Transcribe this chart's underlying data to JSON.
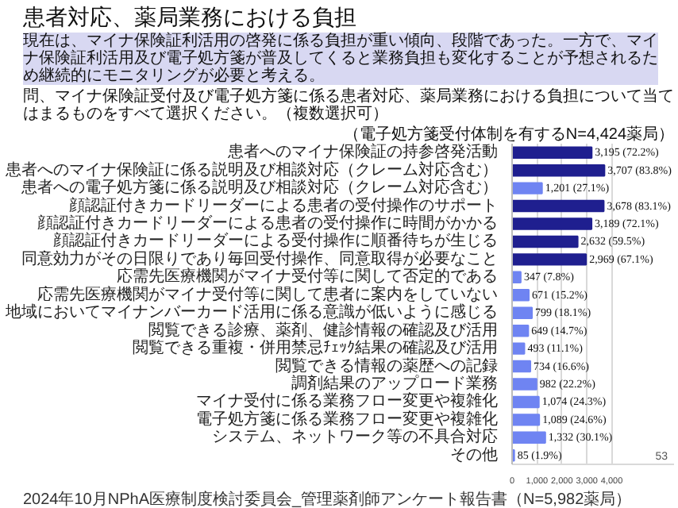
{
  "chart_data": {
    "type": "bar",
    "orientation": "horizontal",
    "title": "患者対応、薬局業務における負担",
    "subtitle": "現在は、マイナ保険証利活用の啓発に係る負担が重い傾向、段階であった。一方で、マイナ保険証利活用及び電子処方箋が普及してくると業務負担も変化することが予想されるため継続的にモニタリングが必要と考える。",
    "annotations": [
      "問、マイナ保険証受付及び電子処方箋に係る患者対応、薬局業務における負担について当てはまるものをすべて選択ください。（複数選択可）",
      "（電子処方箋受付体制を有するN=4,424薬局）",
      "2024年10月NPhA医療制度検討委員会_管理薬剤師アンケート報告書（N=5,982薬局）",
      "53"
    ],
    "categories": [
      "患者へのマイナ保険証の持参啓発活動",
      "患者へのマイナ保険証に係る説明及び相談対応（クレーム対応含む）",
      "患者への電子処方箋に係る説明及び相談対応（クレーム対応含む）",
      "顔認証付きカードリーダーによる患者の受付操作のサポート",
      "顔認証付きカードリーダーによる患者の受付操作に時間がかかる",
      "顔認証付きカードリーダーによる受付操作に順番待ちが生じる",
      "同意効力がその日限りであり毎回受付操作、同意取得が必要なこと",
      "応需先医療機関がマイナ受付等に関して否定的である",
      "応需先医療機関がマイナ受付等に関して患者に案内をしていない",
      "地域においてマイナンバーカード活用に係る意識が低いように感じる",
      "閲覧できる診療、薬剤、健診情報の確認及び活用",
      "閲覧できる重複・併用禁忌ﾁｪｯｸ結果の確認及び活用",
      "閲覧できる情報の薬歴への記録",
      "調剤結果のアップロード業務",
      "マイナ受付に係る業務フロー変更や複雑化",
      "電子処方箋に係る業務フロー変更や複雑化",
      "システム、ネットワーク等の不具合対応",
      "その他"
    ],
    "values": [
      3195,
      3707,
      1201,
      3678,
      3189,
      2632,
      2969,
      347,
      671,
      799,
      649,
      493,
      734,
      982,
      1074,
      1089,
      1332,
      85
    ],
    "value_labels": [
      "3,195 (72.2%)",
      "3,707 (83.8%)",
      "1,201 (27.1%)",
      "3,678 (83.1%)",
      "3,189 (72.1%)",
      "2,632 (59.5%)",
      "2,969 (67.1%)",
      "347 (7.8%)",
      "671 (15.2%)",
      "799 (18.1%)",
      "649 (14.7%)",
      "493 (11.1%)",
      "734 (16.6%)",
      "982 (22.2%)",
      "1,074 (24.3%)",
      "1,089 (24.6%)",
      "1,332 (30.1%)",
      "85 (1.9%)"
    ],
    "colors": [
      "#1f1f8f",
      "#1f1f8f",
      "#6f84f2",
      "#1f1f8f",
      "#1f1f8f",
      "#1f1f8f",
      "#1f1f8f",
      "#6f84f2",
      "#6f84f2",
      "#6f84f2",
      "#6f84f2",
      "#6f84f2",
      "#6f84f2",
      "#6f84f2",
      "#6f84f2",
      "#6f84f2",
      "#6f84f2",
      "#6f84f2"
    ],
    "xlim": [
      0,
      6500
    ],
    "xticks": [
      0,
      {
        "value": 1000,
        "label": "1,000"
      },
      {
        "value": 2000,
        "label": "2,000"
      },
      {
        "value": 3000,
        "label": "3,000"
      },
      {
        "value": 4000,
        "label": "4,000"
      }
    ],
    "grid": "x"
  }
}
